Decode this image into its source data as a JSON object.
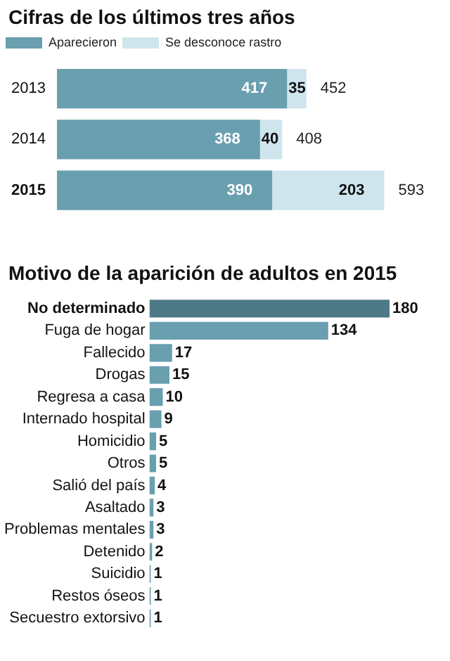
{
  "chart_data": [
    {
      "type": "bar",
      "title": "Cifras de los últimos tres años",
      "orientation": "horizontal",
      "stacked": true,
      "categories": [
        "2013",
        "2014",
        "2015"
      ],
      "series": [
        {
          "name": "Aparecieron",
          "color": "#6a9fb0",
          "values": [
            417,
            368,
            390
          ]
        },
        {
          "name": "Se desconoce rastro",
          "color": "#cfe5ee",
          "values": [
            35,
            40,
            203
          ]
        }
      ],
      "data_labels": true,
      "totals": [
        "452",
        "408",
        "593"
      ],
      "legend": "top left"
    },
    {
      "type": "bar",
      "title": "Motivo de la aparición de adultos en 2015",
      "orientation": "horizontal",
      "categories": [
        "No determinado",
        "Fuga de hogar",
        "Fallecido",
        "Drogas",
        "Regresa a casa",
        "Internado hospital",
        "Homicidio",
        "Otros",
        "Salió del país",
        "Asaltado",
        "Problemas mentales",
        "Detenido",
        "Suicidio",
        "Restos óseos",
        "Secuestro extorsivo"
      ],
      "values": [
        180,
        134,
        17,
        15,
        10,
        9,
        5,
        5,
        4,
        3,
        3,
        2,
        1,
        1,
        1
      ],
      "colors": [
        "#4e7a87",
        "#6a9fb0",
        "#6a9fb0",
        "#6a9fb0",
        "#6a9fb0",
        "#6a9fb0",
        "#6a9fb0",
        "#6a9fb0",
        "#6a9fb0",
        "#6a9fb0",
        "#6a9fb0",
        "#6a9fb0",
        "#6a9fb0",
        "#6a9fb0",
        "#6a9fb0"
      ],
      "data_labels": true
    }
  ]
}
